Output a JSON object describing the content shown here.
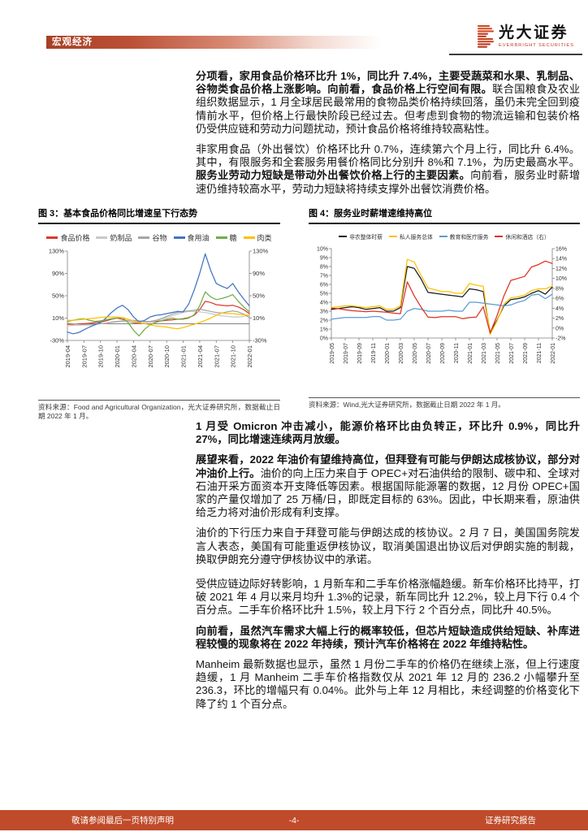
{
  "header": {
    "section_label": "宏观经济",
    "brand_cn": "光大证券",
    "brand_en": "EVERBRIGHT SECURITIES"
  },
  "body": {
    "paragraphs_top": [
      {
        "segments": [
          {
            "bold": true,
            "text": "分项看，家用食品价格环比升 1%，同比升 7.4%，主要受蔬菜和水果、乳制品、谷物类食品价格上涨影响。向前看，食品价格上行空间有限。"
          },
          {
            "bold": false,
            "text": "联合国粮食及农业组织数据显示，1 月全球居民最常用的食物品类价格持续回落，虽仍未完全回到疫情前水平，但价格上行最快阶段已经过去。但考虑到食物的物流运输和包装价格仍受供应链和劳动力问题扰动，预计食品价格将维持较高粘性。"
          }
        ]
      },
      {
        "segments": [
          {
            "bold": false,
            "text": "非家用食品（外出餐饮）价格环比升 0.7%，连续第六个月上行，同比升 6.4%。其中，有限服务和全套服务用餐价格同比分别升 8%和 7.1%，为历史最高水平。"
          },
          {
            "bold": true,
            "text": "服务业劳动力短缺是带动外出餐饮价格上行的主要因素。"
          },
          {
            "bold": false,
            "text": "向前看，服务业时薪增速仍维持较高水平，劳动力短缺将持续支撑外出餐饮消费价格。"
          }
        ]
      }
    ],
    "paragraphs_bottom": [
      {
        "segments": [
          {
            "bold": true,
            "text": "1 月受 Omicron 冲击减小，能源价格环比由负转正，环比升 0.9%，同比升 27%，同比增速连续两月放缓。"
          }
        ]
      },
      {
        "segments": [
          {
            "bold": true,
            "text": "展望来看，2022 年油价有望维持高位，但拜登有可能与伊朗达成核协议，部分对冲油价上行。"
          },
          {
            "bold": false,
            "text": "油价的向上压力来自于 OPEC+对石油供给的限制、碳中和、全球对石油开采方面资本开支降低等因素。根据国际能源署的数据，12 月份 OPEC+国家的产量仅增加了 25 万桶/日，即既定目标的 63%。因此，中长期来看，原油供给乏力将对油价形成有利支撑。"
          }
        ]
      },
      {
        "segments": [
          {
            "bold": false,
            "text": "油价的下行压力来自于拜登可能与伊朗达成的核协议。2 月 7 日，美国国务院发言人表态，美国有可能重返伊核协议，取消美国退出协议后对伊朗实施的制裁，换取伊朗充分遵守伊核协议中的承诺。"
          }
        ]
      },
      {
        "gap_before": true,
        "segments": [
          {
            "bold": false,
            "text": "受供应链边际好转影响，1 月新车和二手车价格涨幅趋缓。新车价格环比持平，打破 2021 年 4 月以来月均升 1.3%的记录，新车同比升 12.2%，较上月下行 0.4 个百分点。二手车价格环比升 1.5%，较上月下行 2 个百分点，同比升 40.5%。"
          }
        ]
      },
      {
        "segments": [
          {
            "bold": true,
            "text": "向前看，虽然汽车需求大幅上行的概率较低，但芯片短缺造成供给短缺、补库进程较慢的现象将在 2022 年持续，预计汽车价格将在 2022 年维持粘性。"
          }
        ]
      },
      {
        "segments": [
          {
            "bold": false,
            "text": "Manheim 最新数据也显示，虽然 1 月份二手车的价格仍在继续上涨，但上行速度趋缓，1 月 Manheim 二手车价格指数仅从 2021 年 12 月的 236.2 小幅攀升至 236.3，环比的增幅只有 0.04%。此外与上年 12 月相比，未经调整的价格变化下降了约 1 个百分点。"
          }
        ]
      }
    ]
  },
  "figures": [
    {
      "caption": "图 3：基本食品价格同比增速呈下行态势",
      "source": "资料来源：Food and Agricultural Organization，光大证券研究所，数据截止日期 2022 年 1 月。"
    },
    {
      "caption": "图 4：服务业时薪增速维持高位",
      "source": "资料来源：Wind,光大证券研究所，数据截止日期 2022 年 1 月。"
    }
  ],
  "footer": {
    "left": "敬请参阅最后一页特别声明",
    "center": "-4-",
    "right": "证券研究报告"
  },
  "chart_data": [
    {
      "type": "line",
      "title": "图 3：基本食品价格同比增速呈下行态势",
      "x_start": "2019-04",
      "x_end": "2022-01",
      "x_frequency": "monthly",
      "x_tick_labels": [
        "2019-04",
        "2019-07",
        "2019-10",
        "2020-01",
        "2020-04",
        "2020-07",
        "2020-10",
        "2021-01",
        "2021-04",
        "2021-07",
        "2021-10",
        "2022-01"
      ],
      "x_tick_step": 3,
      "axes": {
        "left": {
          "min": -30,
          "max": 130,
          "ticks": [
            130,
            90,
            50,
            10,
            -30
          ],
          "suffix": "%"
        },
        "right": "mirror"
      },
      "zero_line": true,
      "grid": false,
      "legend_position": "top",
      "series": [
        {
          "name": "食品价格",
          "color": "#d93a2e",
          "axis": "left",
          "values": [
            -1,
            -1,
            0,
            0,
            1,
            2,
            3,
            5,
            8,
            10,
            8,
            4,
            2,
            1,
            2,
            3,
            4,
            5,
            6,
            7,
            8,
            9,
            11,
            15,
            25,
            40,
            38,
            34,
            33,
            32,
            33,
            30,
            25,
            18
          ]
        },
        {
          "name": "奶制品",
          "color": "#c9c9c9",
          "axis": "left",
          "values": [
            -4,
            -3,
            -3,
            -2,
            -2,
            -1,
            0,
            1,
            2,
            3,
            4,
            4,
            3,
            2,
            2,
            3,
            5,
            8,
            11,
            14,
            17,
            20,
            22,
            22,
            21,
            20,
            18,
            16,
            14,
            13,
            12,
            12,
            13,
            16
          ]
        },
        {
          "name": "谷物",
          "color": "#a6a6a6",
          "axis": "left",
          "values": [
            1,
            0,
            -1,
            -2,
            -2,
            -1,
            0,
            1,
            3,
            4,
            5,
            6,
            6,
            5,
            4,
            4,
            6,
            9,
            13,
            17,
            20,
            22,
            23,
            24,
            26,
            24,
            22,
            20,
            19,
            21,
            23,
            21,
            17,
            11
          ]
        },
        {
          "name": "食用油",
          "color": "#4472c4",
          "axis": "left",
          "values": [
            -15,
            -18,
            -16,
            -11,
            -6,
            -2,
            2,
            10,
            20,
            28,
            33,
            25,
            12,
            3,
            6,
            12,
            15,
            16,
            18,
            20,
            22,
            21,
            35,
            60,
            90,
            125,
            95,
            72,
            67,
            63,
            72,
            57,
            44,
            32
          ]
        },
        {
          "name": "糖",
          "color": "#70ad47",
          "axis": "left",
          "values": [
            4,
            6,
            8,
            9,
            6,
            4,
            5,
            7,
            9,
            10,
            11,
            2,
            -12,
            -22,
            -10,
            -2,
            2,
            5,
            8,
            10,
            8,
            8,
            10,
            16,
            32,
            57,
            48,
            43,
            45,
            48,
            52,
            40,
            30,
            21
          ]
        },
        {
          "name": "肉类",
          "color": "#ffc000",
          "axis": "left",
          "values": [
            6,
            6,
            7,
            8,
            9,
            10,
            11,
            12,
            12,
            12,
            11,
            8,
            5,
            2,
            0,
            -2,
            -4,
            -5,
            -6,
            -8,
            -9,
            -7,
            -4,
            -1,
            2,
            6,
            10,
            15,
            19,
            18,
            18,
            17,
            16,
            15
          ]
        }
      ]
    },
    {
      "type": "line",
      "title": "图 4：服务业时薪增速维持高位",
      "x_start": "2019-05",
      "x_end": "2022-01",
      "x_frequency": "monthly",
      "x_tick_labels": [
        "2019-05",
        "2019-07",
        "2019-09",
        "2019-11",
        "2020-01",
        "2020-03",
        "2020-05",
        "2020-07",
        "2020-09",
        "2020-11",
        "2021-01",
        "2021-03",
        "2021-05",
        "2021-07",
        "2021-09",
        "2021-11",
        "2022-01"
      ],
      "x_tick_step": 2,
      "axes": {
        "left": {
          "min": 0,
          "max": 10,
          "ticks": [
            10,
            9,
            8,
            7,
            6,
            5,
            4,
            3,
            2,
            1,
            0
          ],
          "suffix": "%"
        },
        "right": {
          "min": -2,
          "max": 16,
          "ticks": [
            16,
            14,
            12,
            10,
            8,
            6,
            4,
            2,
            0,
            -2
          ],
          "suffix": "%"
        }
      },
      "zero_line": false,
      "grid": false,
      "legend_position": "top",
      "series": [
        {
          "name": "非农整体时薪",
          "color": "#1a1a1a",
          "axis": "left",
          "values": [
            3.2,
            3.3,
            3.4,
            3.5,
            3.4,
            3.2,
            3.3,
            3.4,
            3.0,
            3.0,
            3.4,
            8.0,
            7.8,
            6.6,
            5.1,
            5.0,
            4.9,
            4.8,
            4.7,
            4.6,
            5.5,
            5.4,
            5.2,
            0.6,
            2.0,
            3.6,
            4.3,
            4.4,
            4.6,
            5.0,
            5.3,
            4.9,
            5.7
          ]
        },
        {
          "name": "私人服务总体",
          "color": "#ffc000",
          "axis": "left",
          "values": [
            3.4,
            3.5,
            3.6,
            3.6,
            3.5,
            3.4,
            3.5,
            3.6,
            3.2,
            3.2,
            3.6,
            8.8,
            8.5,
            7.0,
            5.6,
            5.4,
            5.2,
            5.2,
            5.0,
            5.0,
            6.1,
            5.9,
            5.8,
            0.4,
            1.9,
            3.8,
            4.5,
            4.6,
            4.8,
            5.3,
            5.5,
            5.5,
            5.8
          ]
        },
        {
          "name": "教育和医疗服务",
          "color": "#5b9bd5",
          "axis": "left",
          "values": [
            2.1,
            2.2,
            2.3,
            2.3,
            2.3,
            2.3,
            2.4,
            2.4,
            2.0,
            2.0,
            2.1,
            3.0,
            3.3,
            3.2,
            3.0,
            3.0,
            3.0,
            3.1,
            3.0,
            3.0,
            4.0,
            4.0,
            3.9,
            3.8,
            3.7,
            3.6,
            3.7,
            4.0,
            4.2,
            4.8,
            4.9,
            4.4,
            4.9
          ]
        },
        {
          "name": "休闲和酒店（右）",
          "color": "#e0301e",
          "axis": "right",
          "values": [
            4.0,
            3.9,
            3.7,
            3.5,
            3.4,
            3.3,
            3.4,
            3.3,
            3.2,
            3.0,
            2.9,
            9.3,
            6.5,
            4.2,
            2.2,
            2.1,
            2.3,
            2.3,
            2.3,
            1.9,
            2.1,
            2.2,
            4.3,
            -1.0,
            2.5,
            6.5,
            9.6,
            10.0,
            10.4,
            12.3,
            12.8,
            13.5,
            13.0
          ]
        }
      ]
    }
  ]
}
